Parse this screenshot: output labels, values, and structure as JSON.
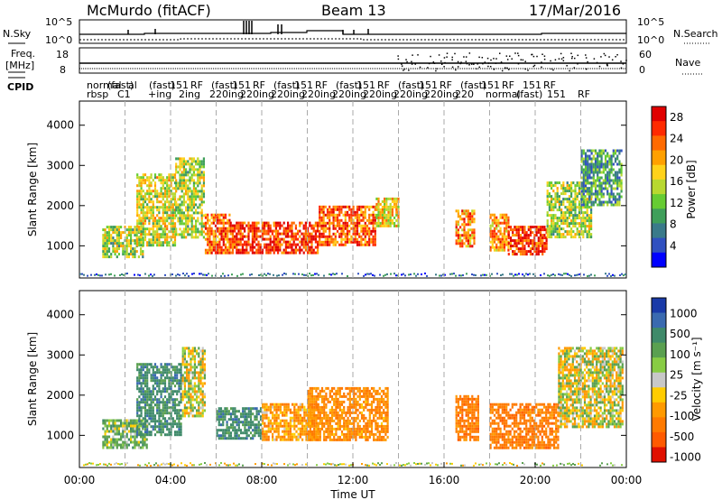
{
  "header": {
    "station": "McMurdo (fitACF)",
    "beam": "Beam 13",
    "date": "17/Mar/2016"
  },
  "top_panels": {
    "nsky_label": "N.Sky",
    "nsearch_label": "N.Search",
    "freq_label": "Freq.",
    "freq_unit": "[MHz]",
    "nave_label": "Nave",
    "cpid_label": "CPID",
    "nsky_ticks": [
      "10^5",
      "10^0"
    ],
    "nsearch_ticks": [
      "10^5",
      "10^0"
    ],
    "freq_ticks": [
      "18",
      "8"
    ],
    "nave_ticks": [
      "60",
      "0"
    ],
    "cpid_row1": [
      "normal",
      "(fast)",
      "al",
      "(fast)",
      "151",
      "RF",
      "(fast)",
      "151",
      "RF",
      "(fast)",
      "151",
      "RF",
      "(fast)",
      "151",
      "RF",
      "(fast)",
      "151",
      "RF",
      "(fast)",
      "151",
      "RF",
      "151",
      "RF"
    ],
    "cpid_row2": [
      "rbsp",
      "C1",
      "+ing",
      "2ing",
      "220ing",
      "220ing",
      "220ing",
      "220ing",
      "220ing",
      "220ing",
      "220ing",
      "220ing",
      "220",
      "normal",
      "(fast)",
      "151",
      "RF"
    ]
  },
  "chart_data": [
    {
      "type": "heatmap",
      "name": "power",
      "ylabel": "Slant Range [km]",
      "xlabel": "",
      "xlim": [
        0,
        24
      ],
      "ylim": [
        200,
        4600
      ],
      "yticks": [
        "1000",
        "2000",
        "3000",
        "4000"
      ],
      "colorbar": {
        "label": "Power [dB]",
        "ticks": [
          "4",
          "8",
          "12",
          "16",
          "20",
          "24",
          "28"
        ],
        "range": [
          0,
          30
        ]
      },
      "features": [
        {
          "x": [
            1.0,
            2.8
          ],
          "y": [
            700,
            1500
          ],
          "value": 14
        },
        {
          "x": [
            2.5,
            4.2
          ],
          "y": [
            1000,
            2800
          ],
          "value": 16
        },
        {
          "x": [
            4.2,
            5.5
          ],
          "y": [
            1200,
            3200
          ],
          "value": 14
        },
        {
          "x": [
            5.5,
            6.6
          ],
          "y": [
            800,
            1800
          ],
          "value": 24
        },
        {
          "x": [
            6.6,
            8.5
          ],
          "y": [
            800,
            1600
          ],
          "value": 28
        },
        {
          "x": [
            8.5,
            10.5
          ],
          "y": [
            800,
            1600
          ],
          "value": 27
        },
        {
          "x": [
            10.5,
            13.0
          ],
          "y": [
            1000,
            2000
          ],
          "value": 25
        },
        {
          "x": [
            13.0,
            14.0
          ],
          "y": [
            1500,
            2200
          ],
          "value": 18
        },
        {
          "x": [
            16.5,
            17.3
          ],
          "y": [
            1000,
            1900
          ],
          "value": 22
        },
        {
          "x": [
            18.0,
            18.8
          ],
          "y": [
            900,
            1800
          ],
          "value": 22
        },
        {
          "x": [
            18.8,
            20.5
          ],
          "y": [
            800,
            1500
          ],
          "value": 27
        },
        {
          "x": [
            20.5,
            22.5
          ],
          "y": [
            1200,
            2600
          ],
          "value": 14
        },
        {
          "x": [
            22.0,
            23.8
          ],
          "y": [
            2000,
            3400
          ],
          "value": 9
        }
      ]
    },
    {
      "type": "heatmap",
      "name": "velocity",
      "ylabel": "Slant Range [km]",
      "xlabel": "Time UT",
      "xlim": [
        0,
        24
      ],
      "ylim": [
        200,
        4600
      ],
      "yticks": [
        "1000",
        "2000",
        "3000",
        "4000"
      ],
      "xticks": [
        "00:00",
        "04:00",
        "08:00",
        "12:00",
        "16:00",
        "20:00",
        "00:00"
      ],
      "colorbar": {
        "label": "Velocity [m s⁻¹]",
        "ticks": [
          "1000",
          "500",
          "100",
          "25",
          "-25",
          "-100",
          "-500",
          "-1000"
        ]
      },
      "features": [
        {
          "x": [
            1.0,
            3.0
          ],
          "y": [
            700,
            1400
          ],
          "value": 100
        },
        {
          "x": [
            2.5,
            4.5
          ],
          "y": [
            1000,
            2800
          ],
          "value": 300
        },
        {
          "x": [
            4.5,
            5.5
          ],
          "y": [
            1500,
            3200
          ],
          "value": 0
        },
        {
          "x": [
            6.0,
            8.0
          ],
          "y": [
            900,
            1700
          ],
          "value": 300
        },
        {
          "x": [
            8.0,
            10.5
          ],
          "y": [
            900,
            1800
          ],
          "value": -150
        },
        {
          "x": [
            10.0,
            13.5
          ],
          "y": [
            900,
            2200
          ],
          "value": -200
        },
        {
          "x": [
            16.5,
            17.5
          ],
          "y": [
            900,
            2000
          ],
          "value": -300
        },
        {
          "x": [
            18.0,
            21.0
          ],
          "y": [
            700,
            1800
          ],
          "value": -300
        },
        {
          "x": [
            21.0,
            23.8
          ],
          "y": [
            1200,
            3200
          ],
          "value": 0
        }
      ]
    }
  ]
}
